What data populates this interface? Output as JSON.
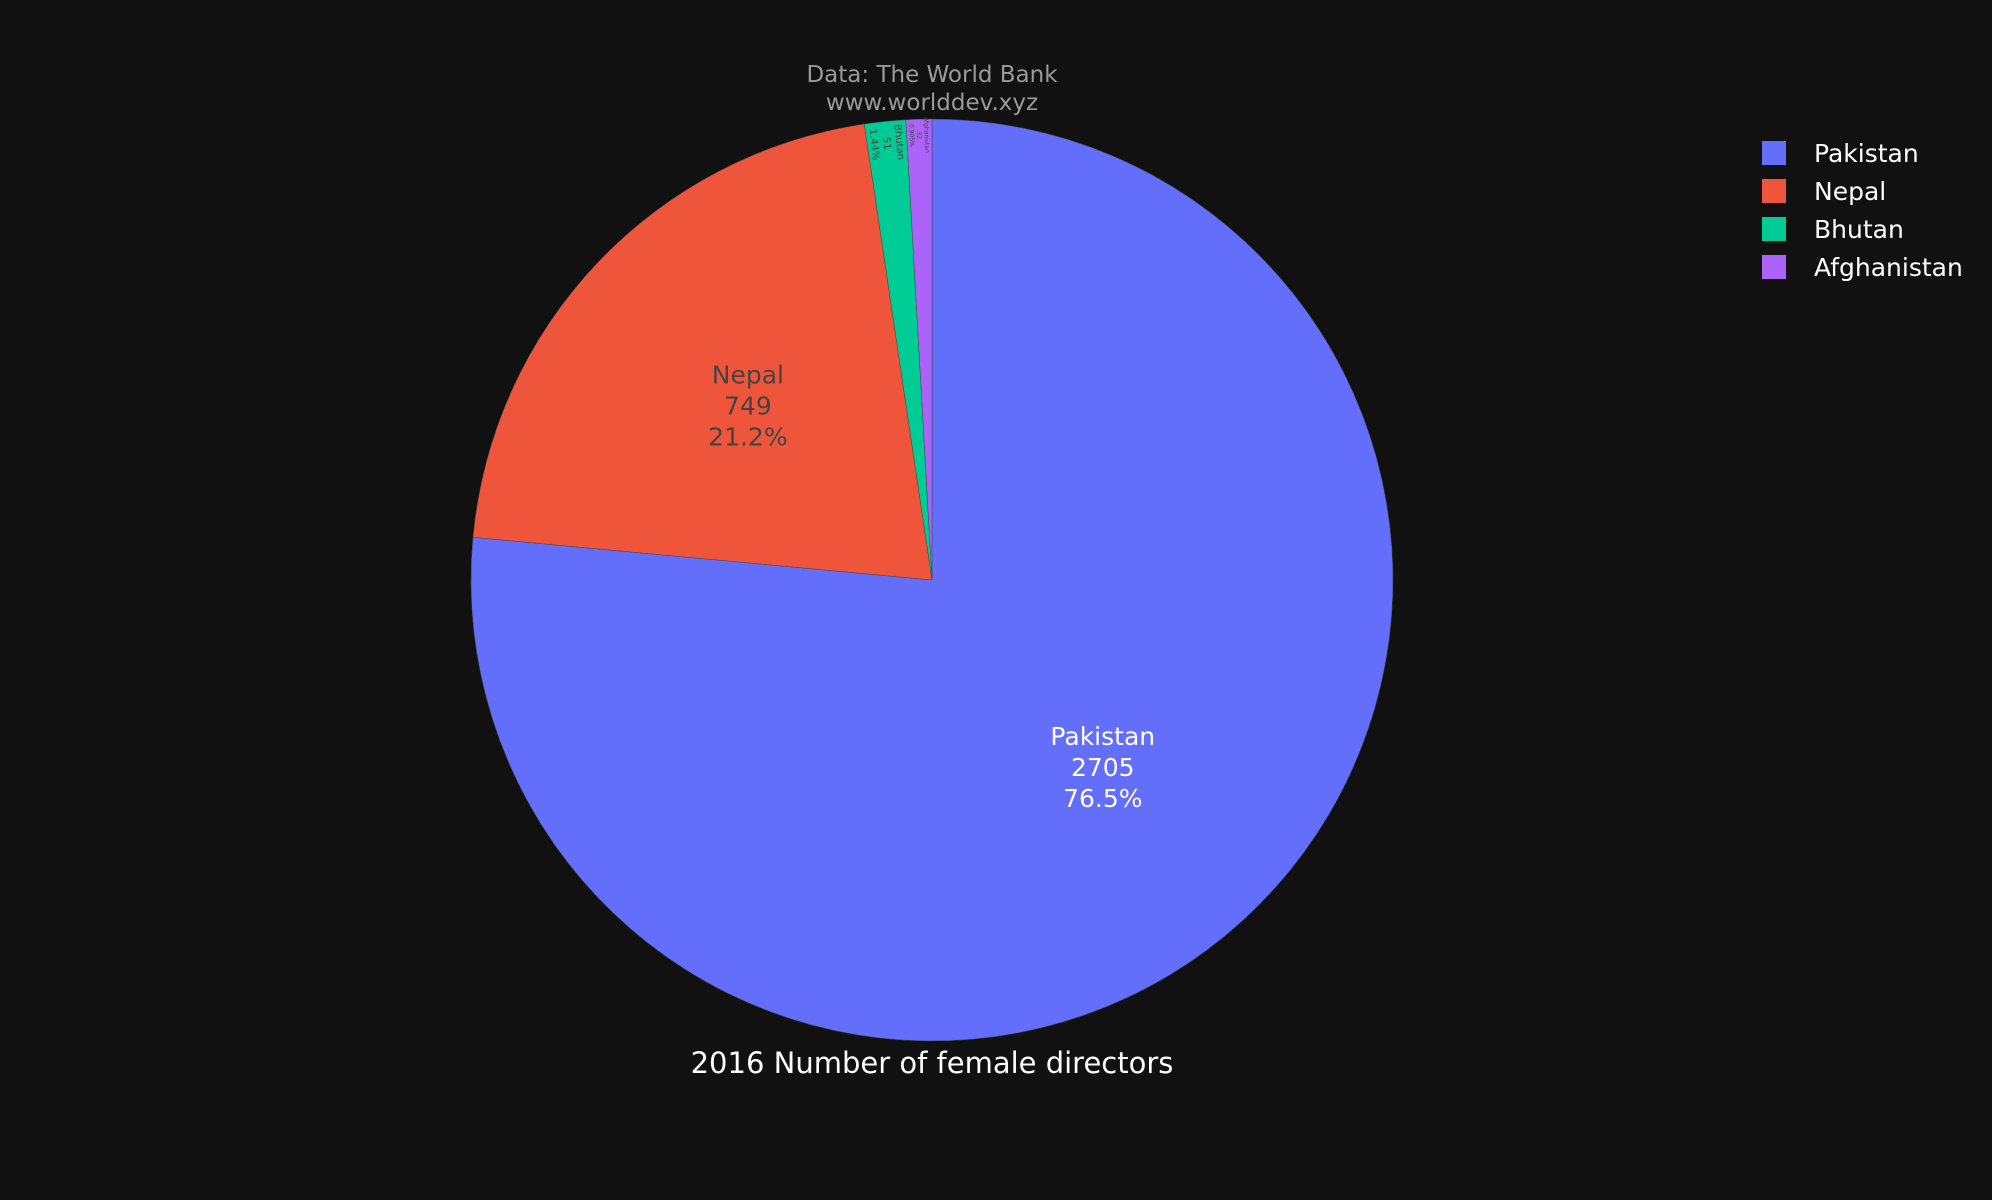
{
  "chart_data": {
    "type": "pie",
    "title": "2016 Number of female directors",
    "source_line1": "Data: The World Bank",
    "source_line2": "www.worlddev.xyz",
    "slices": [
      {
        "label": "Pakistan",
        "value": 2705,
        "percent": "76.5%",
        "color": "#636efa"
      },
      {
        "label": "Nepal",
        "value": 749,
        "percent": "21.2%",
        "color": "#ef553b"
      },
      {
        "label": "Bhutan",
        "value": 51,
        "percent": "1.44%",
        "color": "#00cc96"
      },
      {
        "label": "Afghanistan",
        "value": 32,
        "percent": "0.905%",
        "color": "#ab63fa"
      }
    ],
    "legend_position": "top-right",
    "background": "#111111"
  }
}
